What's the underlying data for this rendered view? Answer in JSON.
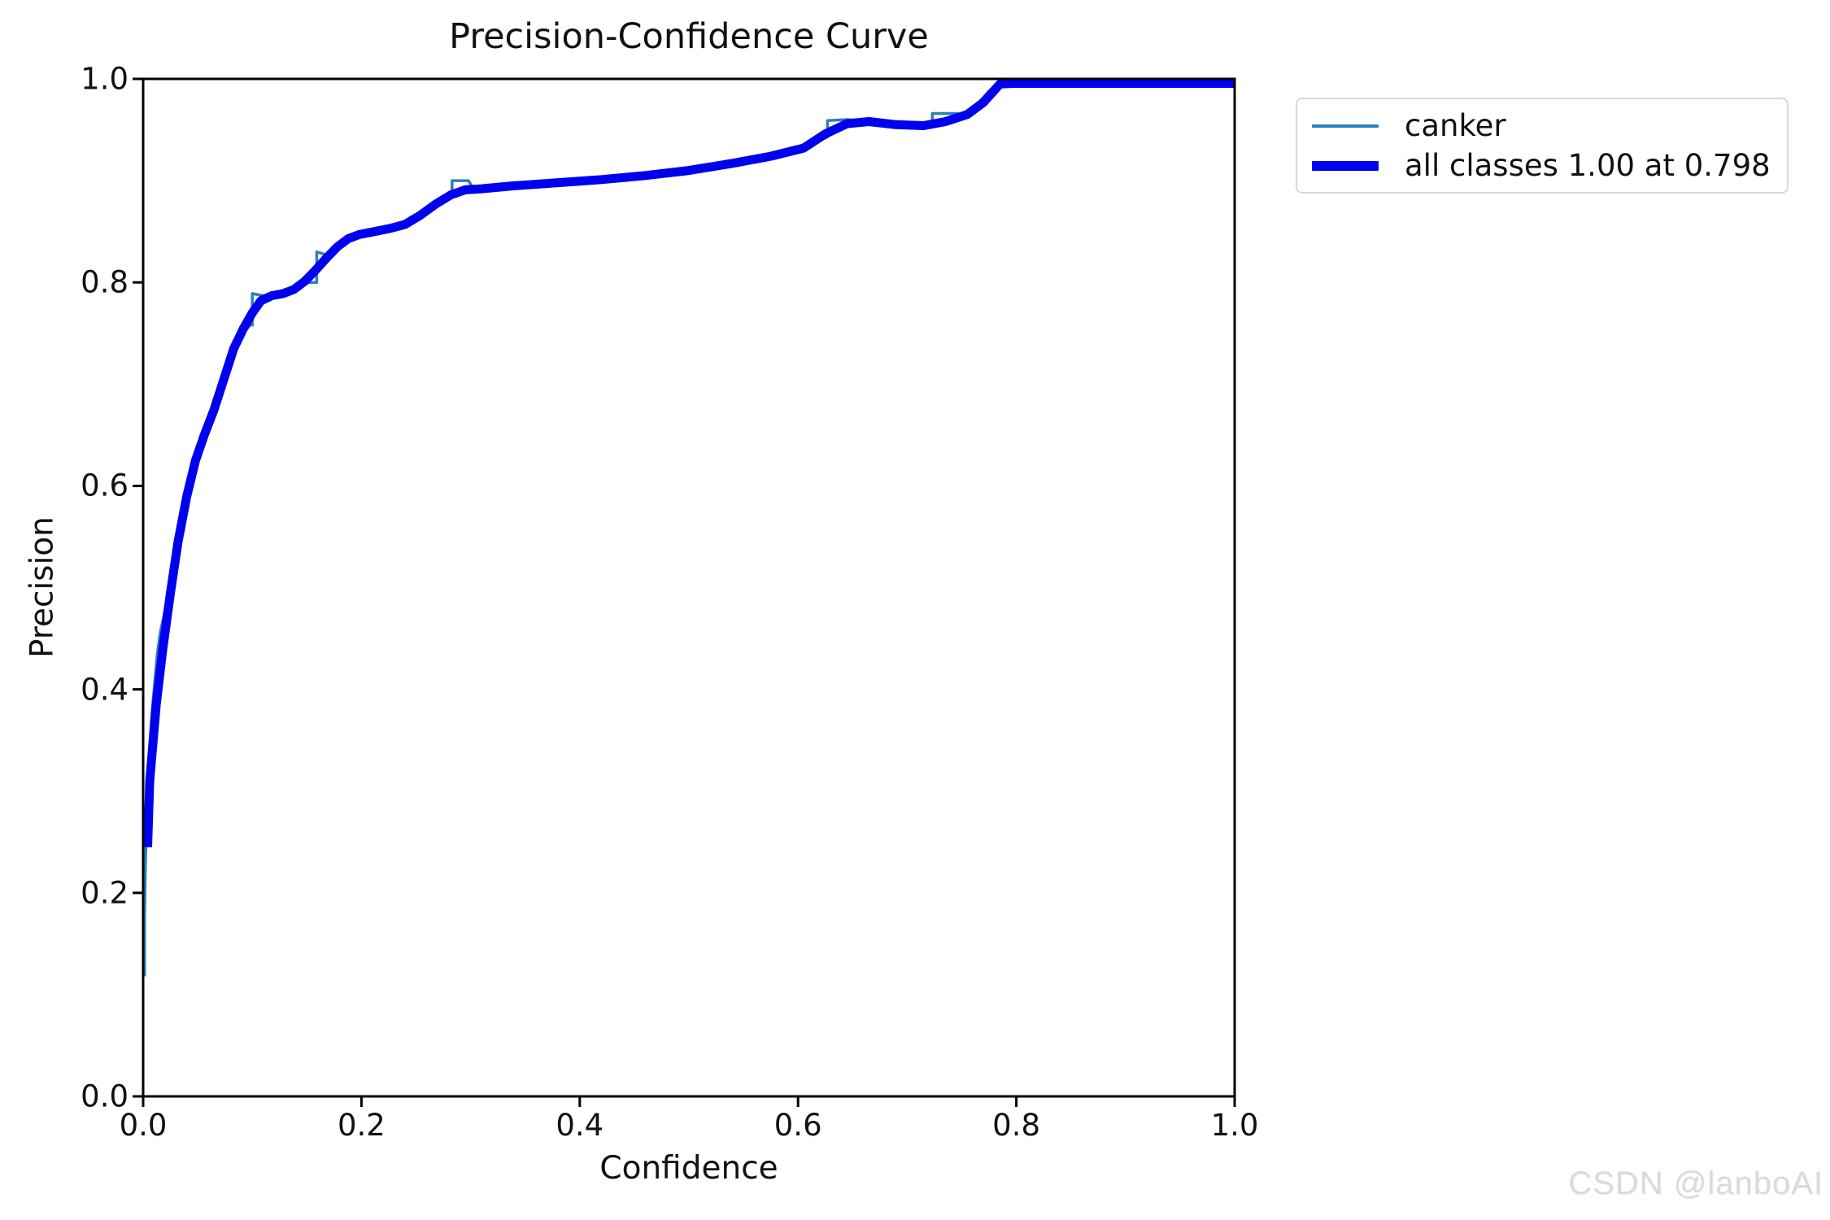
{
  "watermark": "CSDN @lanboAI",
  "chart_data": {
    "type": "line",
    "title": "Precision-Confidence Curve",
    "xlabel": "Confidence",
    "ylabel": "Precision",
    "xlim": [
      0.0,
      1.0
    ],
    "ylim": [
      0.0,
      1.0
    ],
    "grid": false,
    "legend_position": "outside-top-right",
    "xticks": [
      "0.0",
      "0.2",
      "0.4",
      "0.6",
      "0.8",
      "1.0"
    ],
    "yticks": [
      "0.0",
      "0.2",
      "0.4",
      "0.6",
      "0.8",
      "1.0"
    ],
    "axis_color": "#000000",
    "series": [
      {
        "name": "canker",
        "color": "#2e7fba",
        "line_width": 3.5,
        "points": [
          [
            0.0,
            0.118
          ],
          [
            0.001,
            0.18
          ],
          [
            0.002,
            0.225
          ],
          [
            0.004,
            0.3
          ],
          [
            0.006,
            0.345
          ],
          [
            0.008,
            0.375
          ],
          [
            0.01,
            0.4
          ],
          [
            0.013,
            0.435
          ],
          [
            0.016,
            0.458
          ],
          [
            0.019,
            0.472
          ],
          [
            0.023,
            0.497
          ],
          [
            0.027,
            0.528
          ],
          [
            0.031,
            0.553
          ],
          [
            0.036,
            0.578
          ],
          [
            0.041,
            0.6
          ],
          [
            0.047,
            0.628
          ],
          [
            0.053,
            0.648
          ],
          [
            0.06,
            0.663
          ],
          [
            0.067,
            0.685
          ],
          [
            0.074,
            0.705
          ],
          [
            0.081,
            0.728
          ],
          [
            0.09,
            0.748
          ],
          [
            0.098,
            0.758
          ],
          [
            0.1,
            0.758
          ],
          [
            0.1,
            0.789
          ],
          [
            0.11,
            0.787
          ],
          [
            0.12,
            0.789
          ],
          [
            0.132,
            0.791
          ],
          [
            0.143,
            0.796
          ],
          [
            0.15,
            0.8
          ],
          [
            0.159,
            0.8
          ],
          [
            0.159,
            0.83
          ],
          [
            0.168,
            0.827
          ],
          [
            0.178,
            0.836
          ],
          [
            0.188,
            0.845
          ],
          [
            0.2,
            0.848
          ],
          [
            0.215,
            0.851
          ],
          [
            0.23,
            0.852
          ],
          [
            0.236,
            0.853
          ],
          [
            0.236,
            0.859
          ],
          [
            0.248,
            0.863
          ],
          [
            0.26,
            0.872
          ],
          [
            0.272,
            0.882
          ],
          [
            0.283,
            0.886
          ],
          [
            0.283,
            0.9
          ],
          [
            0.298,
            0.9
          ],
          [
            0.302,
            0.893
          ],
          [
            0.33,
            0.894
          ],
          [
            0.36,
            0.897
          ],
          [
            0.4,
            0.9
          ],
          [
            0.44,
            0.903
          ],
          [
            0.48,
            0.907
          ],
          [
            0.52,
            0.913
          ],
          [
            0.56,
            0.921
          ],
          [
            0.6,
            0.93
          ],
          [
            0.615,
            0.937
          ],
          [
            0.627,
            0.943
          ],
          [
            0.627,
            0.959
          ],
          [
            0.645,
            0.96
          ],
          [
            0.665,
            0.958
          ],
          [
            0.69,
            0.954
          ],
          [
            0.71,
            0.953
          ],
          [
            0.723,
            0.955
          ],
          [
            0.723,
            0.966
          ],
          [
            0.746,
            0.966
          ],
          [
            0.746,
            0.959
          ],
          [
            0.76,
            0.97
          ],
          [
            0.775,
            0.988
          ],
          [
            0.788,
            1.0
          ],
          [
            0.85,
            1.0
          ],
          [
            1.0,
            1.0
          ]
        ]
      },
      {
        "name": "all classes 1.00 at 0.798",
        "color": "#0000ee",
        "line_width": 11,
        "points": [
          [
            0.002,
            0.245
          ],
          [
            0.006,
            0.31
          ],
          [
            0.012,
            0.385
          ],
          [
            0.018,
            0.44
          ],
          [
            0.025,
            0.495
          ],
          [
            0.032,
            0.545
          ],
          [
            0.04,
            0.59
          ],
          [
            0.048,
            0.625
          ],
          [
            0.056,
            0.65
          ],
          [
            0.065,
            0.675
          ],
          [
            0.074,
            0.705
          ],
          [
            0.083,
            0.735
          ],
          [
            0.092,
            0.755
          ],
          [
            0.1,
            0.77
          ],
          [
            0.108,
            0.782
          ],
          [
            0.118,
            0.787
          ],
          [
            0.128,
            0.789
          ],
          [
            0.138,
            0.793
          ],
          [
            0.148,
            0.801
          ],
          [
            0.158,
            0.812
          ],
          [
            0.168,
            0.824
          ],
          [
            0.178,
            0.835
          ],
          [
            0.188,
            0.843
          ],
          [
            0.198,
            0.847
          ],
          [
            0.212,
            0.85
          ],
          [
            0.226,
            0.853
          ],
          [
            0.24,
            0.857
          ],
          [
            0.254,
            0.866
          ],
          [
            0.268,
            0.877
          ],
          [
            0.282,
            0.886
          ],
          [
            0.295,
            0.891
          ],
          [
            0.31,
            0.892
          ],
          [
            0.34,
            0.895
          ],
          [
            0.38,
            0.898
          ],
          [
            0.42,
            0.901
          ],
          [
            0.46,
            0.905
          ],
          [
            0.5,
            0.91
          ],
          [
            0.54,
            0.917
          ],
          [
            0.575,
            0.924
          ],
          [
            0.605,
            0.932
          ],
          [
            0.625,
            0.946
          ],
          [
            0.645,
            0.956
          ],
          [
            0.665,
            0.958
          ],
          [
            0.69,
            0.955
          ],
          [
            0.715,
            0.954
          ],
          [
            0.735,
            0.958
          ],
          [
            0.755,
            0.965
          ],
          [
            0.77,
            0.977
          ],
          [
            0.785,
            0.995
          ],
          [
            0.798,
            1.0
          ],
          [
            0.85,
            1.0
          ],
          [
            1.0,
            1.0
          ]
        ]
      }
    ],
    "legend": [
      {
        "label": "canker",
        "color": "#2e7fba",
        "thickness": 4
      },
      {
        "label": "all classes 1.00 at 0.798",
        "color": "#0000ee",
        "thickness": 12
      }
    ]
  }
}
